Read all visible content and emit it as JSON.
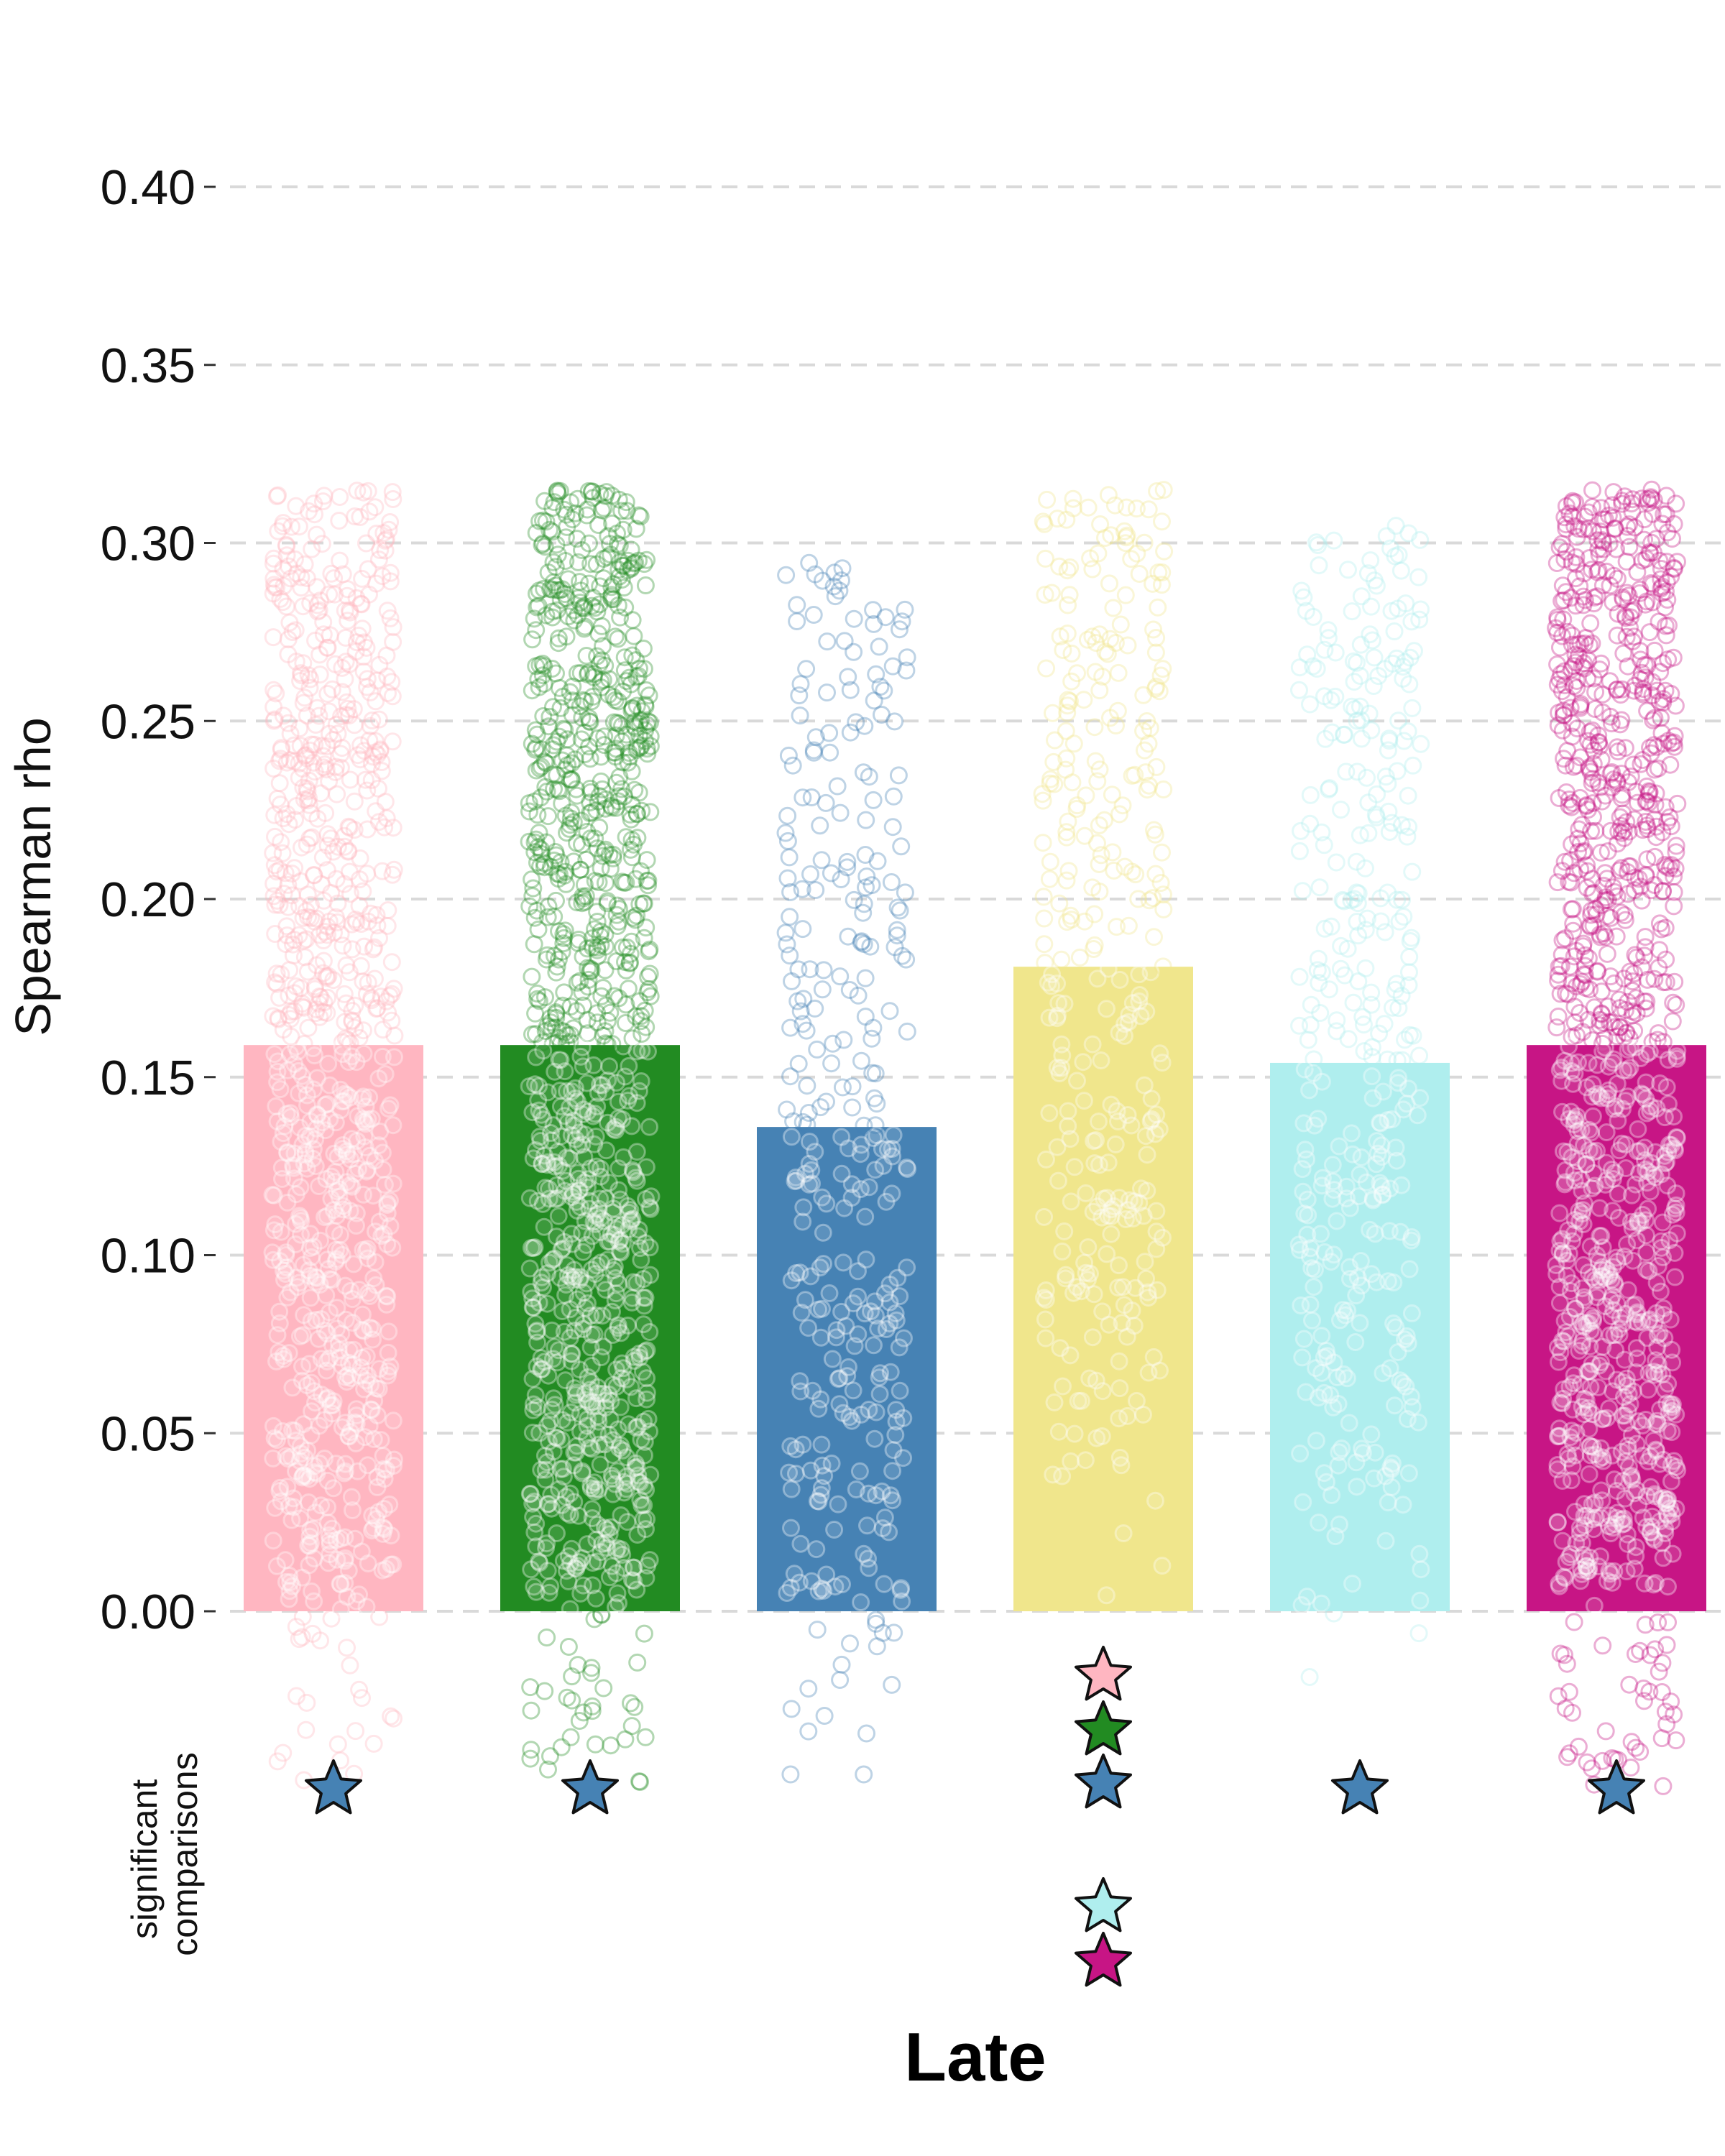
{
  "chart_data": {
    "type": "bar",
    "title": "",
    "xlabel": "Late",
    "ylabel": "Spearman rho",
    "secondary_label": [
      "significant",
      "comparisons"
    ],
    "ylim": [
      0,
      0.4
    ],
    "yticks": [
      0.0,
      0.05,
      0.1,
      0.15,
      0.2,
      0.25,
      0.3,
      0.35,
      0.4
    ],
    "ytick_labels": [
      "0.00",
      "0.05",
      "0.10",
      "0.15",
      "0.20",
      "0.25",
      "0.30",
      "0.35",
      "0.40"
    ],
    "grid": true,
    "legend": "none",
    "series": [
      {
        "color": "#ffb6c1",
        "value": 0.159,
        "points_range": [
          -0.05,
          0.315
        ],
        "n_points": 900
      },
      {
        "color": "#228b22",
        "value": 0.159,
        "points_range": [
          -0.05,
          0.315
        ],
        "n_points": 1100
      },
      {
        "color": "#4682b4",
        "value": 0.136,
        "points_range": [
          -0.05,
          0.295
        ],
        "n_points": 330
      },
      {
        "color": "#f0e68c",
        "value": 0.181,
        "points_range": [
          0.0,
          0.315
        ],
        "n_points": 330
      },
      {
        "color": "#afeeee",
        "value": 0.154,
        "points_range": [
          -0.02,
          0.305
        ],
        "n_points": 360
      },
      {
        "color": "#c71585",
        "value": 0.159,
        "points_range": [
          -0.05,
          0.315
        ],
        "n_points": 1100
      }
    ],
    "significant_comparisons": [
      [
        "#4682b4"
      ],
      [
        "#4682b4"
      ],
      [],
      [
        "#ffb6c1",
        "#228b22",
        "#4682b4",
        "#afeeee",
        "#c71585"
      ],
      [
        "#4682b4"
      ],
      [
        "#4682b4"
      ]
    ]
  }
}
